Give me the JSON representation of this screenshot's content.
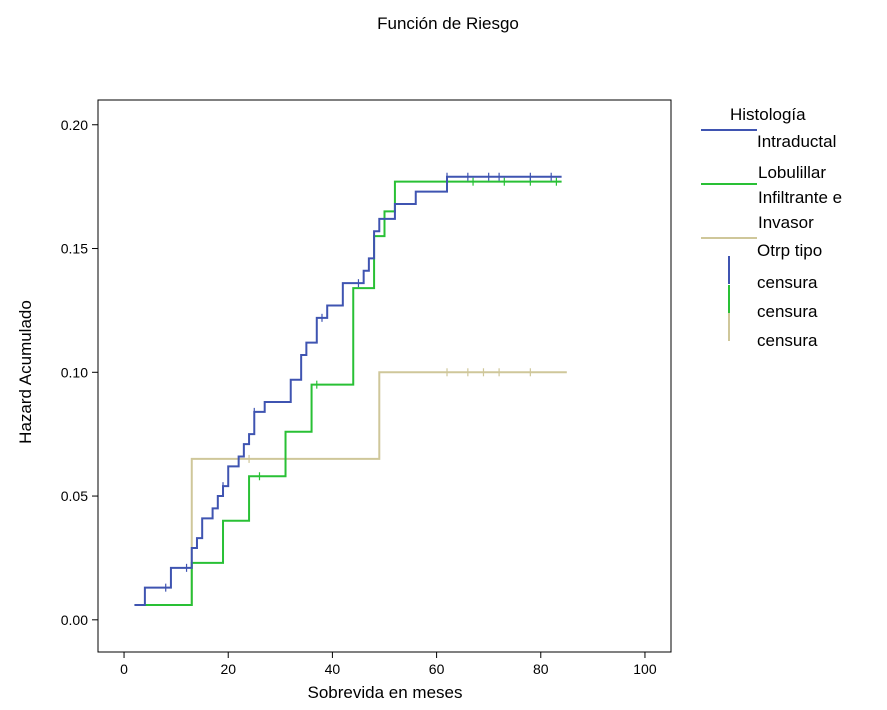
{
  "chart_data": {
    "type": "line",
    "title": "Función de Riesgo",
    "xlabel": "Sobrevida en meses",
    "ylabel": "Hazard Acumulado",
    "xlim": [
      -5,
      105
    ],
    "ylim": [
      -0.013,
      0.21
    ],
    "xticks": [
      0,
      20,
      40,
      60,
      80,
      100
    ],
    "xtick_labels": [
      "0",
      "20",
      "40",
      "60",
      "80",
      "100"
    ],
    "yticks": [
      0.0,
      0.05,
      0.1,
      0.15,
      0.2
    ],
    "ytick_labels": [
      "0.00",
      "0.05",
      "0.10",
      "0.15",
      "0.20"
    ],
    "grid": false,
    "legend_position": "right",
    "legend_title": "Histología",
    "series": [
      {
        "name": "Intraductal",
        "color": "#3f54b1",
        "step": true,
        "x": [
          2,
          4,
          9,
          13,
          14,
          15,
          17,
          18,
          19,
          20,
          22,
          23,
          24,
          25,
          27,
          29,
          32,
          34,
          35,
          37,
          39,
          42,
          46,
          47,
          48,
          49,
          52,
          56,
          62,
          84
        ],
        "y": [
          0.006,
          0.013,
          0.021,
          0.029,
          0.033,
          0.041,
          0.045,
          0.05,
          0.054,
          0.062,
          0.066,
          0.071,
          0.075,
          0.084,
          0.088,
          0.088,
          0.097,
          0.107,
          0.112,
          0.122,
          0.127,
          0.136,
          0.141,
          0.146,
          0.157,
          0.162,
          0.168,
          0.173,
          0.179,
          0.179
        ],
        "censored_x": [
          8,
          12,
          19,
          25,
          38,
          45,
          62,
          66,
          70,
          72,
          78,
          82
        ]
      },
      {
        "name": "Lobulillar Infiltrante e Invasor",
        "color": "#29c035",
        "step": true,
        "x": [
          2,
          13,
          19,
          24,
          31,
          36,
          44,
          48,
          50,
          52,
          84
        ],
        "y": [
          0.006,
          0.023,
          0.04,
          0.058,
          0.076,
          0.095,
          0.134,
          0.155,
          0.165,
          0.177,
          0.177
        ],
        "censored_x": [
          26,
          37,
          62,
          67,
          73,
          78,
          83
        ]
      },
      {
        "name": "Otrp tipo",
        "color": "#cfc79a",
        "step": true,
        "x": [
          2,
          13,
          49,
          85
        ],
        "y": [
          0.006,
          0.065,
          0.1,
          0.1
        ],
        "censored_x": [
          24,
          62,
          66,
          69,
          72,
          78
        ]
      }
    ],
    "legend_entries": [
      {
        "label": "Intraductal",
        "color": "#3f54b1",
        "kind": "line"
      },
      {
        "label": "Lobulillar Infiltrante e Invasor",
        "color": "#29c035",
        "kind": "line"
      },
      {
        "label": "Otrp tipo",
        "color": "#cfc79a",
        "kind": "line"
      },
      {
        "label": "censura",
        "color": "#3f54b1",
        "kind": "tick"
      },
      {
        "label": "censura",
        "color": "#29c035",
        "kind": "tick"
      },
      {
        "label": "censura",
        "color": "#cfc79a",
        "kind": "tick"
      }
    ]
  }
}
